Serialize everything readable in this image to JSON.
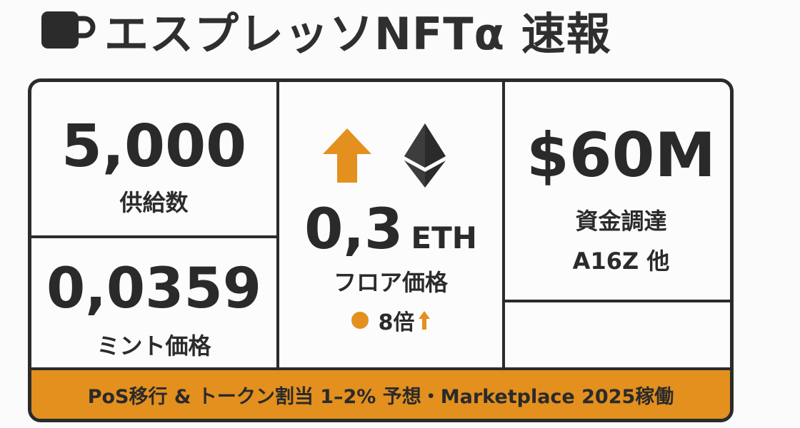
{
  "header": {
    "title": "エスプレッソNFTα 速報",
    "icon": "coffee-cup-icon"
  },
  "colors": {
    "accent": "#e3901f",
    "ink": "#2b2b2b"
  },
  "stats": {
    "supply": {
      "value": "5,000",
      "label": "供給数"
    },
    "mint": {
      "value": "0,0359",
      "label": "ミント価格"
    },
    "floor": {
      "value": "0,3",
      "unit": "ETH",
      "label": "フロア価格",
      "multiplier": "8倍",
      "arrow_icon": "up-arrow-icon",
      "currency_icon": "ethereum-icon"
    },
    "funding": {
      "value": "$60M",
      "label": "資金調達",
      "investor": "A16Z 他"
    }
  },
  "banner": {
    "text": "PoS移行 & トークン割当 1–2% 予想・Marketplace 2025稼働"
  }
}
